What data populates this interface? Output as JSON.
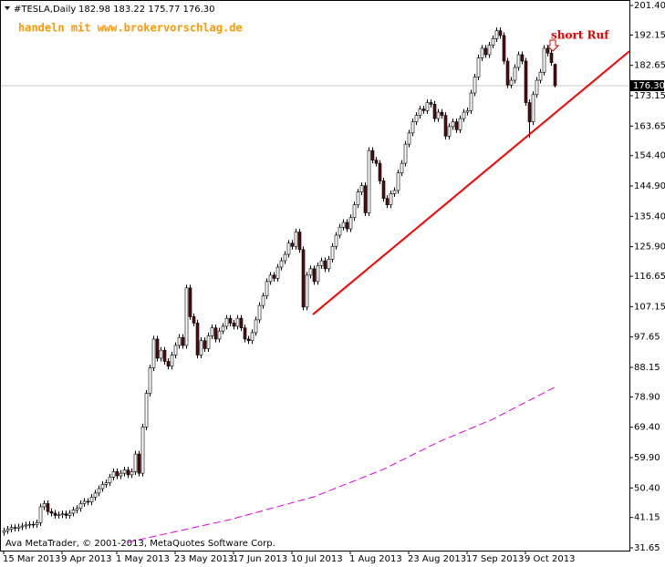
{
  "chart_data": {
    "type": "candlestick",
    "symbol": "#TESLA,Daily",
    "header_prices": "182.98 183.22 175.77 176.30",
    "watermark": "handeln mit www.brokervorschlag.de",
    "annotation": "short Ruf",
    "footer": "Ava MetaTrader, © 2001-2013, MetaQuotes Software Corp.",
    "up_color": "#ffffff",
    "down_color": "#5a0a0a",
    "wick_color": "#000000",
    "categories": [
      "15 Mar 2013",
      null,
      null,
      null,
      null,
      null,
      null,
      null,
      null,
      null,
      null,
      null,
      null,
      null,
      null,
      null,
      "9 Apr 2013",
      null,
      null,
      null,
      null,
      null,
      null,
      null,
      null,
      null,
      null,
      null,
      null,
      null,
      null,
      "1 May 2013",
      null,
      null,
      null,
      null,
      null,
      null,
      null,
      null,
      null,
      null,
      null,
      null,
      null,
      null,
      null,
      "23 May 2013",
      null,
      null,
      null,
      null,
      null,
      null,
      null,
      null,
      null,
      null,
      null,
      null,
      null,
      null,
      null,
      "17 Jun 2013",
      null,
      null,
      null,
      null,
      null,
      null,
      null,
      null,
      null,
      null,
      null,
      null,
      null,
      null,
      null,
      "10 Jul 2013",
      null,
      null,
      null,
      null,
      null,
      null,
      null,
      null,
      null,
      null,
      null,
      null,
      null,
      null,
      null,
      "1 Aug 2013",
      null,
      null,
      null,
      null,
      null,
      null,
      null,
      null,
      null,
      null,
      null,
      null,
      null,
      null,
      null,
      "23 Aug 2013",
      null,
      null,
      null,
      null,
      null,
      null,
      null,
      null,
      null,
      null,
      null,
      null,
      null,
      null,
      null,
      "17 Sep 2013",
      null,
      null,
      null,
      null,
      null,
      null,
      null,
      null,
      null,
      null,
      null,
      null,
      null,
      null,
      null,
      "9 Oct 2013",
      null,
      null,
      null,
      null,
      null,
      null,
      null,
      null
    ],
    "open": [
      36.5,
      37.0,
      37.5,
      38.0,
      37.8,
      38.2,
      38.5,
      38.8,
      39.0,
      38.9,
      39.5,
      44.5,
      45.5,
      43.0,
      42.5,
      41.8,
      42.0,
      42.3,
      41.8,
      42.5,
      43.5,
      44.0,
      45.5,
      46.2,
      46.0,
      47.5,
      48.8,
      50.2,
      51.5,
      52.0,
      53.8,
      55.5,
      54.2,
      55.0,
      56.0,
      54.5,
      55.5,
      61.0,
      55.0,
      69.5,
      80.0,
      88.0,
      97.0,
      91.0,
      93.5,
      90.0,
      88.5,
      92.0,
      95.0,
      97.5,
      95.0,
      113.0,
      104.0,
      102.0,
      92.0,
      96.5,
      94.0,
      98.0,
      100.5,
      97.0,
      99.5,
      101.0,
      103.5,
      102.0,
      101.0,
      103.5,
      100.5,
      97.0,
      96.5,
      99.0,
      103.0,
      107.5,
      110.5,
      115.0,
      117.0,
      116.0,
      119.5,
      121.5,
      123.5,
      127.0,
      126.0,
      130.5,
      125.0,
      107.0,
      117.0,
      119.0,
      115.0,
      120.0,
      121.5,
      119.0,
      122.0,
      126.0,
      129.5,
      132.0,
      133.5,
      131.5,
      135.0,
      139.0,
      143.0,
      145.0,
      136.5,
      156.0,
      153.0,
      152.0,
      146.5,
      141.0,
      139.0,
      142.5,
      143.5,
      149.0,
      152.0,
      158.0,
      161.5,
      165.0,
      167.0,
      169.0,
      168.5,
      171.0,
      170.5,
      166.0,
      168.0,
      167.0,
      160.5,
      163.5,
      165.0,
      162.5,
      166.0,
      168.0,
      168.5,
      174.0,
      179.0,
      185.0,
      188.0,
      186.0,
      189.0,
      191.0,
      193.5,
      192.0,
      184.0,
      176.5,
      178.0,
      182.0,
      186.0,
      184.0,
      171.0,
      165.0,
      173.5,
      178.0,
      180.5,
      188.0,
      186.5,
      182.98
    ],
    "high": [
      38.0,
      38.5,
      39.0,
      39.0,
      39.2,
      39.5,
      39.8,
      40.0,
      40.0,
      40.5,
      45.5,
      46.5,
      46.5,
      44.0,
      43.5,
      43.0,
      43.3,
      43.3,
      43.5,
      44.5,
      45.0,
      46.5,
      47.2,
      47.2,
      48.5,
      49.8,
      51.2,
      52.5,
      53.0,
      54.8,
      56.5,
      56.5,
      56.0,
      57.0,
      57.0,
      56.5,
      62.0,
      62.0,
      70.5,
      81.0,
      89.0,
      98.0,
      98.0,
      94.5,
      94.5,
      91.0,
      93.0,
      96.0,
      98.5,
      98.5,
      114.0,
      114.0,
      105.0,
      103.0,
      97.5,
      97.5,
      99.0,
      101.5,
      101.5,
      100.5,
      102.0,
      104.5,
      104.5,
      103.0,
      104.5,
      104.5,
      101.5,
      98.0,
      100.0,
      104.0,
      108.5,
      111.5,
      116.0,
      118.0,
      118.0,
      120.5,
      122.5,
      124.5,
      128.0,
      128.0,
      131.5,
      131.5,
      126.0,
      118.0,
      120.0,
      120.0,
      121.0,
      122.5,
      122.5,
      123.0,
      127.0,
      130.5,
      133.0,
      134.5,
      134.5,
      136.0,
      140.0,
      144.0,
      146.0,
      146.0,
      157.0,
      157.0,
      154.0,
      153.0,
      147.5,
      142.0,
      143.5,
      144.5,
      150.0,
      153.0,
      159.0,
      162.5,
      166.0,
      168.0,
      170.0,
      170.0,
      172.0,
      172.0,
      171.5,
      169.0,
      169.0,
      168.0,
      164.5,
      166.0,
      166.0,
      167.0,
      169.0,
      169.5,
      175.0,
      180.0,
      186.0,
      189.0,
      189.0,
      190.0,
      192.0,
      194.5,
      194.5,
      193.0,
      185.0,
      179.0,
      183.0,
      187.0,
      187.0,
      185.0,
      172.0,
      174.5,
      179.0,
      181.5,
      189.0,
      189.0,
      187.5,
      183.22
    ],
    "low": [
      35.5,
      36.0,
      36.5,
      36.8,
      36.8,
      37.2,
      37.5,
      37.8,
      37.9,
      37.9,
      38.5,
      43.5,
      42.0,
      41.5,
      40.8,
      40.8,
      41.0,
      40.8,
      40.8,
      41.5,
      42.5,
      43.0,
      44.5,
      45.0,
      45.0,
      46.5,
      47.8,
      49.2,
      50.5,
      51.0,
      52.8,
      53.2,
      53.2,
      54.0,
      53.5,
      53.5,
      54.5,
      54.0,
      54.0,
      68.5,
      79.0,
      87.0,
      90.0,
      90.0,
      89.0,
      87.5,
      87.5,
      91.0,
      94.0,
      94.0,
      94.0,
      103.0,
      101.0,
      91.0,
      91.0,
      93.0,
      93.0,
      97.0,
      96.0,
      96.0,
      98.5,
      100.0,
      101.0,
      100.0,
      100.0,
      99.5,
      96.0,
      95.5,
      95.5,
      98.0,
      102.0,
      106.5,
      109.5,
      114.0,
      115.0,
      115.0,
      118.5,
      120.5,
      122.5,
      125.0,
      125.0,
      124.0,
      106.0,
      106.0,
      116.0,
      114.0,
      114.0,
      119.0,
      118.0,
      118.0,
      121.0,
      125.0,
      128.5,
      131.0,
      130.5,
      130.5,
      134.0,
      138.0,
      142.0,
      135.5,
      135.5,
      152.0,
      151.0,
      145.5,
      140.0,
      138.0,
      138.0,
      141.5,
      142.5,
      148.0,
      151.0,
      157.0,
      160.5,
      164.0,
      166.0,
      167.5,
      167.5,
      169.5,
      165.0,
      165.0,
      166.0,
      159.5,
      159.5,
      162.5,
      161.5,
      161.5,
      165.0,
      167.0,
      167.5,
      173.0,
      178.0,
      184.0,
      185.0,
      185.0,
      188.0,
      190.0,
      191.0,
      183.0,
      175.5,
      175.5,
      177.0,
      181.0,
      183.0,
      170.0,
      160.0,
      164.0,
      172.5,
      177.0,
      179.5,
      185.5,
      182.5,
      175.77
    ],
    "close": [
      37.0,
      37.5,
      38.0,
      37.8,
      38.2,
      38.5,
      38.8,
      39.0,
      38.9,
      39.5,
      44.5,
      45.5,
      43.0,
      42.5,
      41.8,
      42.0,
      42.3,
      41.8,
      42.5,
      43.5,
      44.0,
      45.5,
      46.2,
      46.0,
      47.5,
      48.8,
      50.2,
      51.5,
      52.0,
      53.8,
      55.5,
      54.2,
      55.0,
      56.0,
      54.5,
      55.5,
      61.0,
      55.0,
      69.5,
      80.0,
      88.0,
      97.0,
      91.0,
      93.5,
      90.0,
      88.5,
      92.0,
      95.0,
      97.5,
      95.0,
      113.0,
      104.0,
      102.0,
      92.0,
      96.5,
      94.0,
      98.0,
      100.5,
      97.0,
      99.5,
      101.0,
      103.5,
      102.0,
      101.0,
      103.5,
      100.5,
      97.0,
      96.5,
      99.0,
      103.0,
      107.5,
      110.5,
      115.0,
      117.0,
      116.0,
      119.5,
      121.5,
      123.5,
      127.0,
      126.0,
      130.5,
      125.0,
      107.0,
      117.0,
      119.0,
      115.0,
      120.0,
      121.5,
      119.0,
      122.0,
      126.0,
      129.5,
      132.0,
      133.5,
      131.5,
      135.0,
      139.0,
      143.0,
      145.0,
      136.5,
      156.0,
      153.0,
      152.0,
      146.5,
      141.0,
      139.0,
      142.5,
      143.5,
      149.0,
      152.0,
      158.0,
      161.5,
      165.0,
      167.0,
      169.0,
      168.5,
      171.0,
      170.5,
      166.0,
      168.0,
      167.0,
      160.5,
      163.5,
      165.0,
      162.5,
      166.0,
      168.0,
      168.5,
      174.0,
      179.0,
      185.0,
      188.0,
      186.0,
      189.0,
      191.0,
      193.5,
      192.0,
      184.0,
      176.5,
      178.0,
      182.0,
      186.0,
      184.0,
      171.0,
      165.0,
      173.5,
      178.0,
      180.5,
      188.0,
      186.5,
      183.5,
      176.3
    ],
    "moving_average": {
      "color": "#e000e0",
      "x": [
        34,
        62,
        85,
        104,
        119,
        134,
        151
      ],
      "values": [
        33.4,
        40.5,
        47.6,
        56.2,
        64.7,
        71.9,
        81.9
      ]
    },
    "trendline": {
      "color": "#ff0000",
      "x": [
        84.75,
        171.5
      ],
      "values": [
        104.7,
        187.1
      ]
    },
    "current_price": {
      "value": 176.3,
      "label": "176.30"
    },
    "ylim": [
      31.65,
      201.4
    ],
    "yticks": [
      {
        "value": 31.65,
        "label": "31.65"
      },
      {
        "value": 41.15,
        "label": "41.15"
      },
      {
        "value": 50.4,
        "label": "50.40"
      },
      {
        "value": 59.9,
        "label": "59.90"
      },
      {
        "value": 69.4,
        "label": "69.40"
      },
      {
        "value": 78.9,
        "label": "78.90"
      },
      {
        "value": 88.15,
        "label": "88.15"
      },
      {
        "value": 97.65,
        "label": "97.65"
      },
      {
        "value": 107.15,
        "label": "107.15"
      },
      {
        "value": 116.65,
        "label": "116.65"
      },
      {
        "value": 125.9,
        "label": "125.90"
      },
      {
        "value": 135.4,
        "label": "135.40"
      },
      {
        "value": 144.9,
        "label": "144.90"
      },
      {
        "value": 154.4,
        "label": "154.40"
      },
      {
        "value": 163.65,
        "label": "163.65"
      },
      {
        "value": 173.15,
        "label": "173.15"
      },
      {
        "value": 182.65,
        "label": "182.65"
      },
      {
        "value": 192.15,
        "label": "192.15"
      },
      {
        "value": 201.4,
        "label": "201.40"
      }
    ]
  }
}
